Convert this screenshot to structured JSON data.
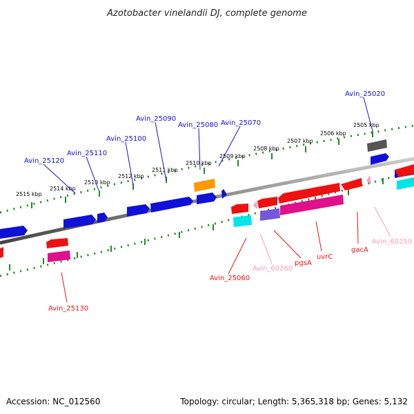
{
  "title": "Azotobacter vinelandii DJ, complete genome",
  "footer": {
    "accession": "Accession: NC_012560",
    "topology": "Topology: circular; Length: 5,365,318 bp; Genes: 5,132"
  },
  "scale_labels": [
    "2505 kbp",
    "2506 kbp",
    "2507 kbp",
    "2508 kbp",
    "2509 kbp",
    "2510 kbp",
    "2511 kbp",
    "2512 kbp",
    "2513 kbp",
    "2514 kbp",
    "2515 kbp"
  ],
  "forward_labels": [
    "Avin_25020",
    "Avin_25070",
    "Avin_25080",
    "Avin_25090",
    "Avin_25100",
    "Avin_25110",
    "Avin_25120"
  ],
  "reverse_labels": [
    "Avin_25060",
    "Avin_60260",
    "pgsA",
    "uvrC",
    "gacA",
    "Avin_60250",
    "Avin_25130"
  ],
  "colors": {
    "forward": "#1010d8",
    "reverse": "#ee1111",
    "pseudo": "#ff99bb",
    "rna_forward": "#ff9900",
    "rna_reverse": "#00e5e5",
    "other": "#555555",
    "pink_gene": "#e0108a",
    "purple_gene": "#7755dd",
    "scale": "#228822",
    "backbone": "#888888"
  }
}
